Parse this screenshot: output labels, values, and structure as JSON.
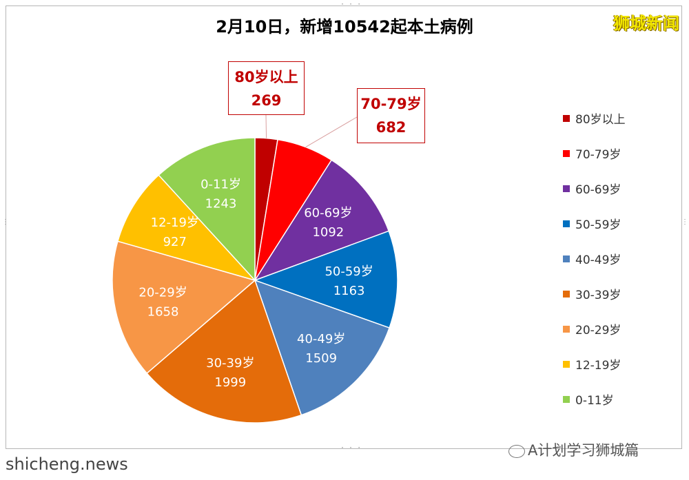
{
  "chart_data": {
    "type": "pie",
    "title": "2月10日，新增10542起本土病例",
    "categories": [
      "80岁以上",
      "70-79岁",
      "60-69岁",
      "50-59岁",
      "40-49岁",
      "30-39岁",
      "20-29岁",
      "12-19岁",
      "0-11岁"
    ],
    "values": [
      269,
      682,
      1092,
      1163,
      1509,
      1999,
      1658,
      927,
      1243
    ],
    "colors": [
      "#c00000",
      "#ff0000",
      "#7030a0",
      "#0070c0",
      "#4f81bd",
      "#e46c0a",
      "#f79646",
      "#ffc000",
      "#92d050"
    ],
    "slice_labels": [
      "",
      "",
      "60-69岁",
      "50-59岁",
      "40-49岁",
      "30-39岁",
      "20-29岁",
      "12-19岁",
      "0-11岁"
    ],
    "slice_values": [
      "",
      "",
      "1092",
      "1163",
      "1509",
      "1999",
      "1658",
      "927",
      "1243"
    ],
    "callouts": [
      {
        "label": "80岁以上",
        "value": "269"
      },
      {
        "label": "70-79岁",
        "value": "682"
      }
    ],
    "legend": {
      "placement": "right",
      "entries": [
        "80岁以上",
        "70-79岁",
        "60-69岁",
        "50-59岁",
        "40-49岁",
        "30-39岁",
        "20-29岁",
        "12-19岁",
        "0-11岁"
      ]
    }
  },
  "brand": "狮城新闻",
  "watermark_left": "shicheng.news",
  "watermark_right": "A计划学习狮城篇"
}
